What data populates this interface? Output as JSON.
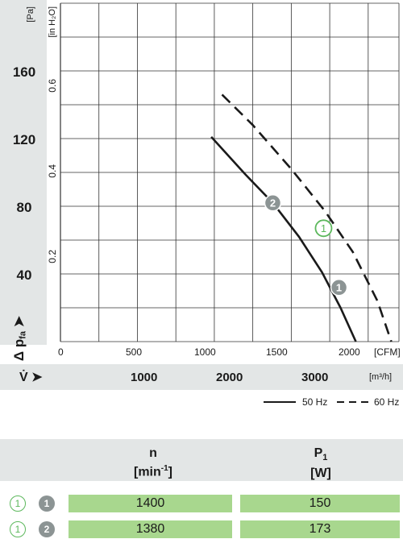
{
  "chart_data": {
    "type": "line",
    "left_axis": {
      "unit": "[Pa]",
      "ticks": [
        "160",
        "120",
        "80",
        "40"
      ],
      "values": [
        160,
        120,
        80,
        40
      ],
      "range": [
        0,
        200
      ]
    },
    "right_axis": {
      "unit": "[in H2O]",
      "unit_display": "[in H₂O]",
      "ticks": [
        "0.6",
        "0.4",
        "0.2"
      ]
    },
    "x_axis_cfm": {
      "unit": "[CFM]",
      "ticks": [
        "0",
        "500",
        "1000",
        "1500",
        "2000"
      ],
      "values": [
        0,
        500,
        1000,
        1500,
        2000
      ],
      "range": [
        0,
        2200
      ]
    },
    "x_axis_m3h": {
      "unit": "[m³/h]",
      "ticks": [
        "1000",
        "2000",
        "3000"
      ],
      "values": [
        1000,
        2000,
        3000
      ]
    },
    "ylabel": "Δ p",
    "ylabel_sub": "fa",
    "xlabel": "V̇",
    "grid": true,
    "series": [
      {
        "name": "50 Hz",
        "style": "solid",
        "color": "#1a1a1a",
        "x": [
          980,
          1200,
          1380,
          1550,
          1700,
          1820,
          1920
        ],
        "y": [
          121,
          99,
          82,
          62,
          41,
          20,
          0
        ]
      },
      {
        "name": "60 Hz",
        "style": "dashed",
        "color": "#1a1a1a",
        "x": [
          1050,
          1250,
          1500,
          1720,
          1900,
          2060,
          2150
        ],
        "y": [
          146,
          128,
          102,
          77,
          53,
          24,
          0
        ]
      }
    ],
    "markers": [
      {
        "label": "1",
        "x": 1810,
        "y": 32,
        "style": "gray"
      },
      {
        "label": "2",
        "x": 1380,
        "y": 82,
        "style": "gray"
      },
      {
        "label": "1",
        "x": 1710,
        "y": 67,
        "style": "green-outline"
      }
    ]
  },
  "legend": {
    "solid": "50 Hz",
    "dashed": "60 Hz"
  },
  "table": {
    "col1_title": "n",
    "col1_unit_pre": "[min",
    "col1_unit_sup": "-1",
    "col1_unit_post": "]",
    "col2_title": "P",
    "col2_title_sub": "1",
    "col2_unit": "[W]",
    "rows": [
      {
        "badge_outline": "1",
        "badge_filled": "1",
        "n": "1400",
        "p1": "150"
      },
      {
        "badge_outline": "1",
        "badge_filled": "2",
        "n": "1380",
        "p1": "173"
      }
    ]
  },
  "colors": {
    "green": "#5cb85c",
    "cell": "#a8d78e",
    "gray_marker": "#8c9494",
    "panel": "#e3e6e6"
  }
}
